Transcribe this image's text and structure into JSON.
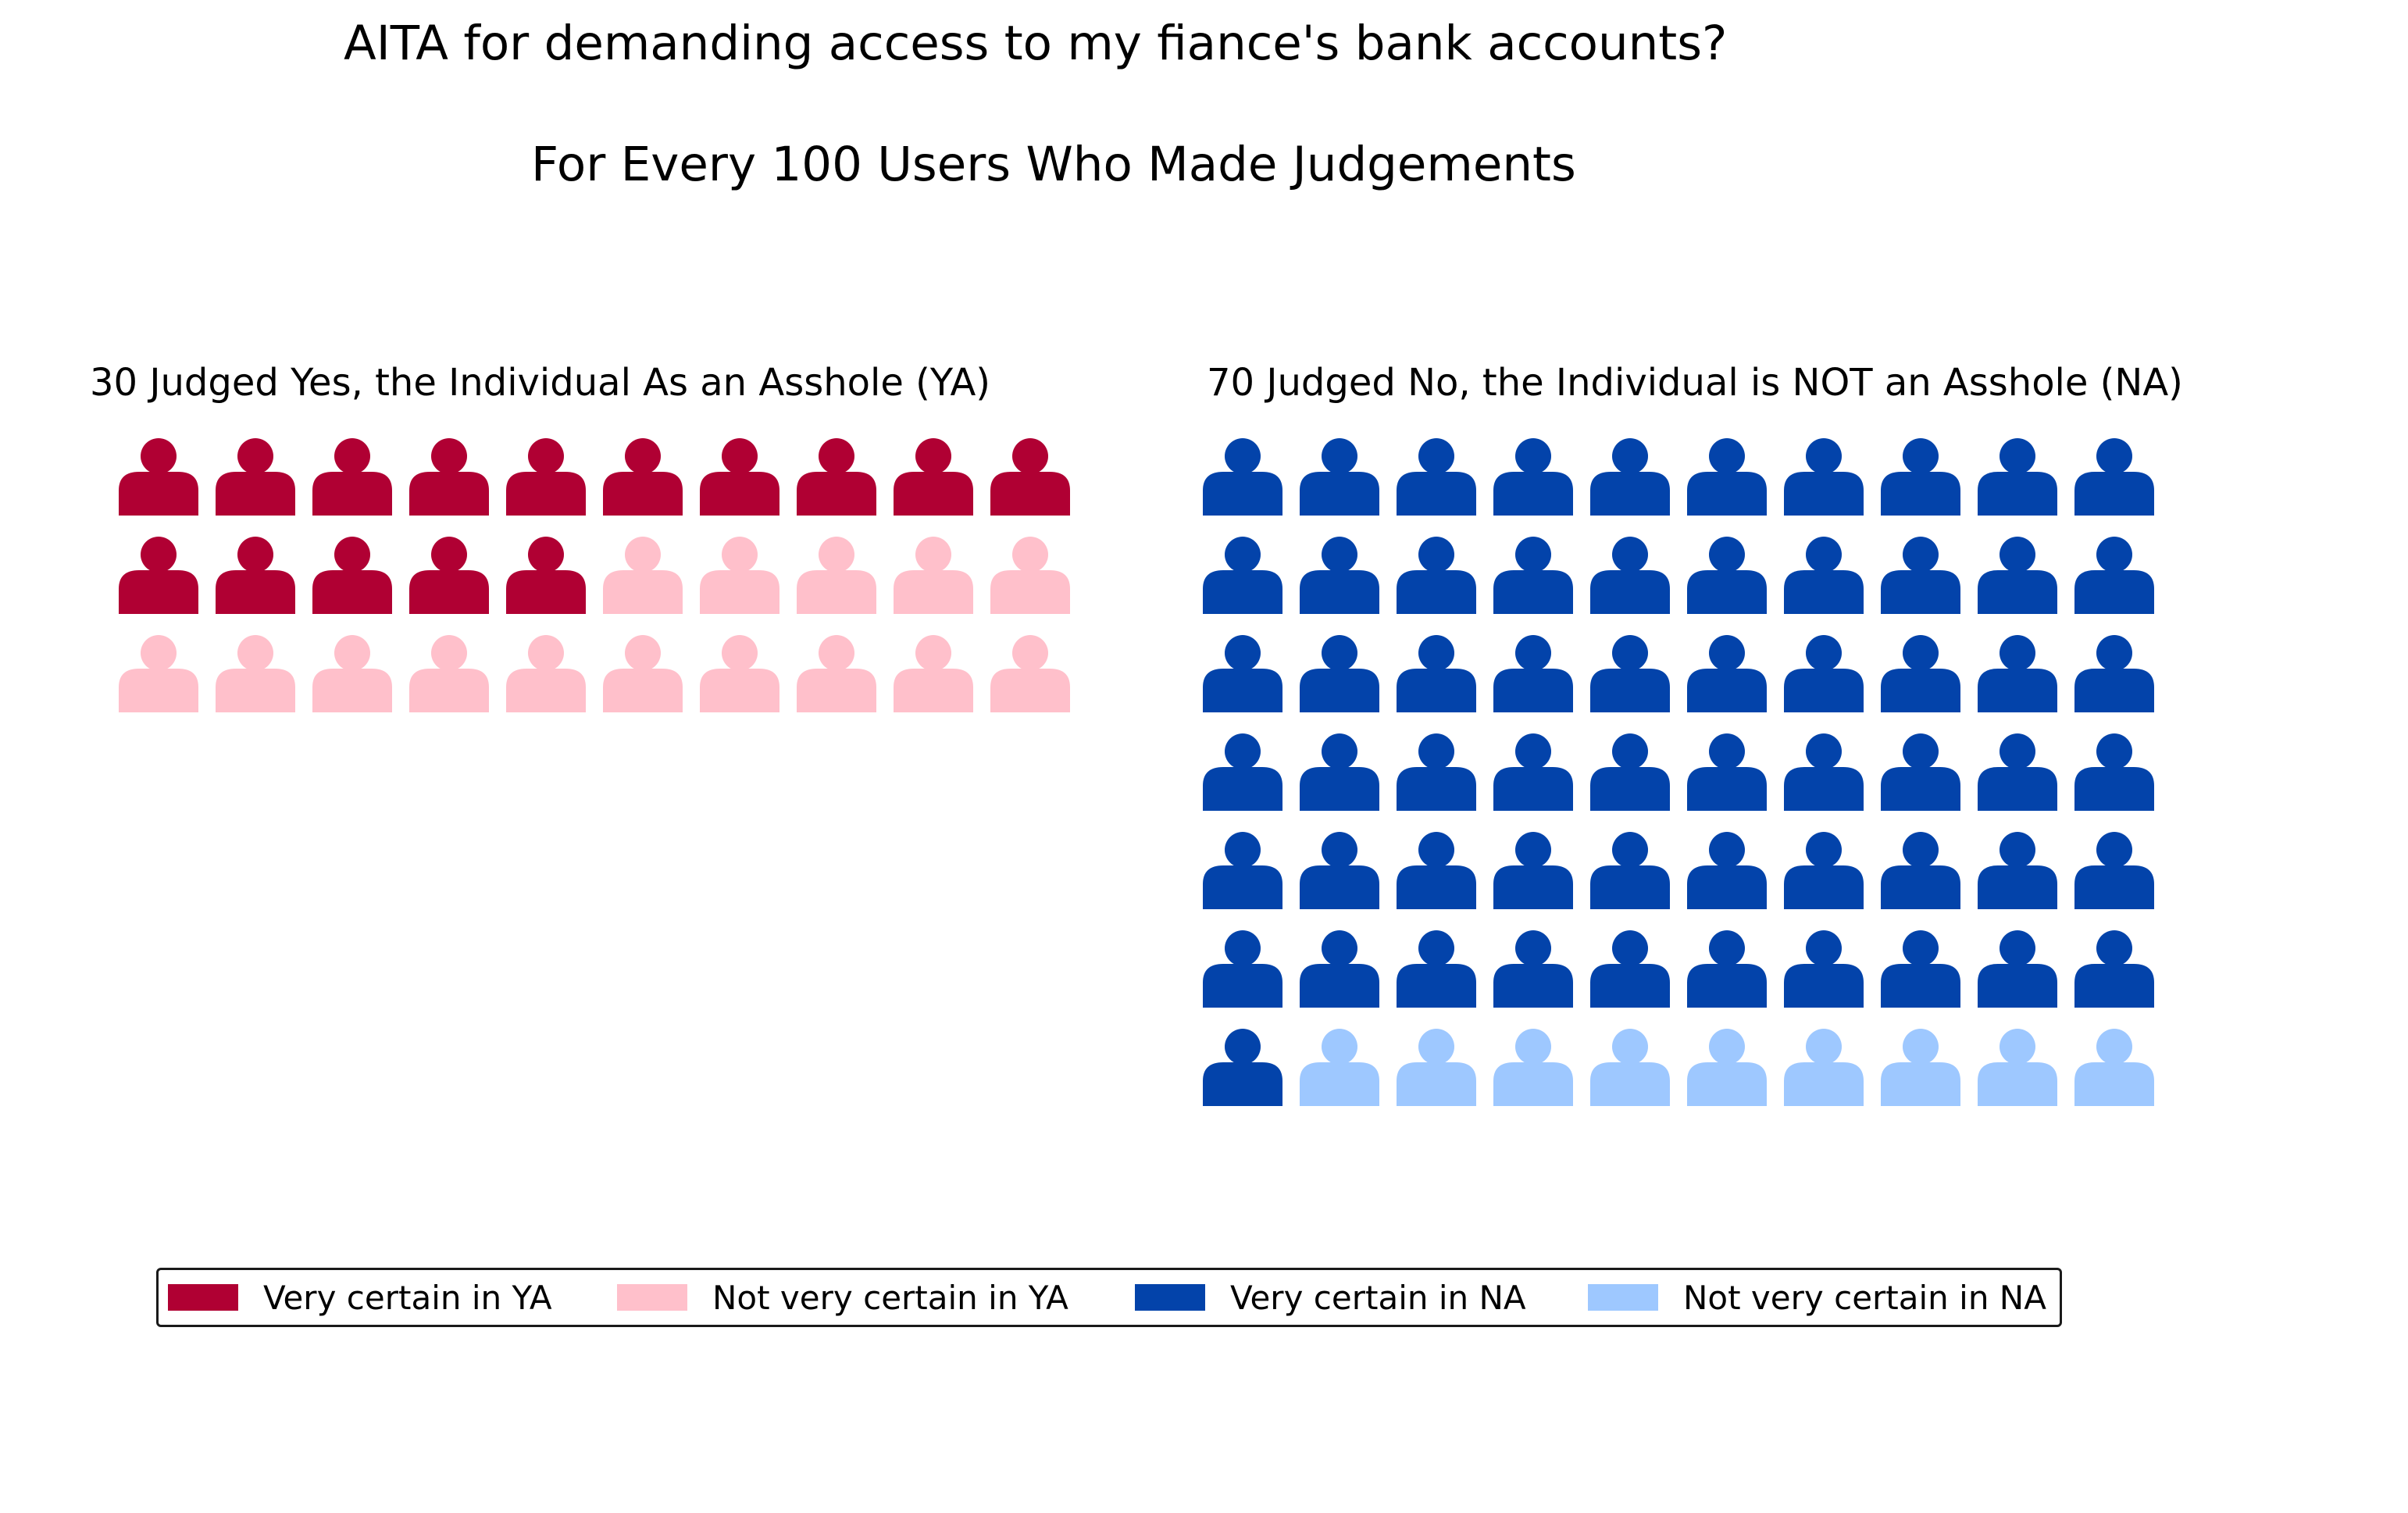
{
  "chart_data": {
    "type": "waffle",
    "title": "AITA for demanding access to my fiance's bank accounts?",
    "subtitle": "For Every 100 Users Who Made Judgements",
    "panels": [
      {
        "title": "30 Judged Yes, the Individual As an Asshole (YA)",
        "total": 30,
        "series": [
          {
            "name": "Very certain in YA",
            "value": 15,
            "color": "#b00033"
          },
          {
            "name": "Not very certain in YA",
            "value": 15,
            "color": "#ffc0cb"
          }
        ],
        "icon": "person-icon",
        "columns": 10
      },
      {
        "title": "70 Judged No, the Individual is NOT an Asshole (NA)",
        "total": 70,
        "series": [
          {
            "name": "Very certain in NA",
            "value": 61,
            "color": "#0343aa"
          },
          {
            "name": "Not very certain in NA",
            "value": 9,
            "color": "#9ec8ff"
          }
        ],
        "icon": "person-icon",
        "columns": 10
      }
    ],
    "legend": {
      "placement": "bottom",
      "entries": [
        {
          "label": "Very certain in YA",
          "color": "#b00033"
        },
        {
          "label": "Not very certain in YA",
          "color": "#ffc0cb"
        },
        {
          "label": "Very certain in NA",
          "color": "#0343aa"
        },
        {
          "label": "Not very certain in NA",
          "color": "#9ec8ff"
        }
      ]
    }
  }
}
